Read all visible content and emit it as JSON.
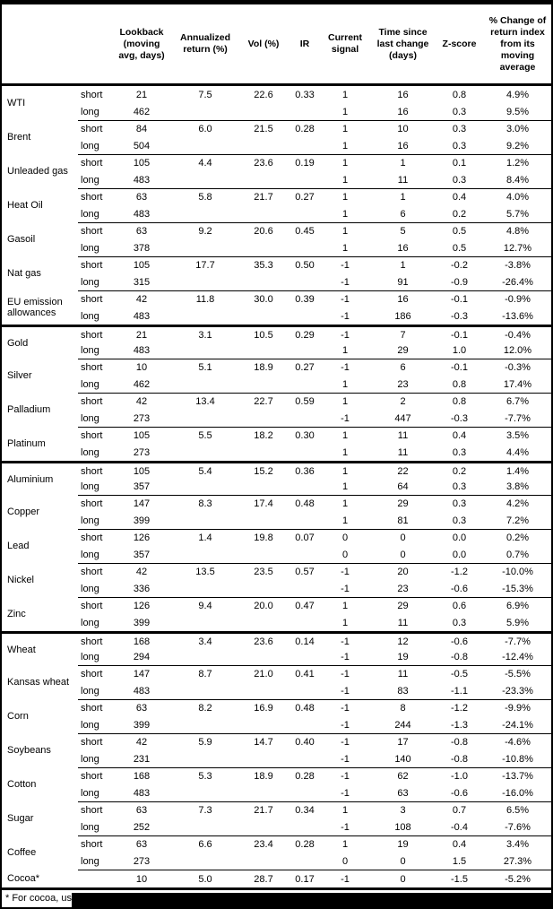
{
  "table": {
    "header": {
      "lookback": "Lookback\n(moving\navg, days)",
      "annualized": "Annualized\nreturn (%)",
      "vol": "Vol (%)",
      "ir": "IR",
      "signal": "Current\nsignal",
      "time": "Time since\nlast change\n(days)",
      "zscore": "Z-score",
      "pct_change": "% Change of\nreturn index\nfrom its\nmoving\naverage"
    },
    "rows": [
      {
        "name": "WTI",
        "section": false,
        "ann": "7.5",
        "vol": "22.6",
        "ir": "0.33",
        "short": {
          "label": "short",
          "lookback": "21",
          "sig": "1",
          "time": "16",
          "z": "0.8",
          "pct": "4.9%"
        },
        "long": {
          "label": "long",
          "lookback": "462",
          "sig": "1",
          "time": "16",
          "z": "0.3",
          "pct": "9.5%"
        }
      },
      {
        "name": "Brent",
        "section": false,
        "ann": "6.0",
        "vol": "21.5",
        "ir": "0.28",
        "short": {
          "label": "short",
          "lookback": "84",
          "sig": "1",
          "time": "10",
          "z": "0.3",
          "pct": "3.0%"
        },
        "long": {
          "label": "long",
          "lookback": "504",
          "sig": "1",
          "time": "16",
          "z": "0.3",
          "pct": "9.2%"
        }
      },
      {
        "name": "Unleaded gas",
        "section": false,
        "ann": "4.4",
        "vol": "23.6",
        "ir": "0.19",
        "short": {
          "label": "short",
          "lookback": "105",
          "sig": "1",
          "time": "1",
          "z": "0.1",
          "pct": "1.2%"
        },
        "long": {
          "label": "long",
          "lookback": "483",
          "sig": "1",
          "time": "11",
          "z": "0.3",
          "pct": "8.4%"
        }
      },
      {
        "name": "Heat Oil",
        "section": false,
        "ann": "5.8",
        "vol": "21.7",
        "ir": "0.27",
        "short": {
          "label": "short",
          "lookback": "63",
          "sig": "1",
          "time": "1",
          "z": "0.4",
          "pct": "4.0%"
        },
        "long": {
          "label": "long",
          "lookback": "483",
          "sig": "1",
          "time": "6",
          "z": "0.2",
          "pct": "5.7%"
        }
      },
      {
        "name": "Gasoil",
        "section": false,
        "ann": "9.2",
        "vol": "20.6",
        "ir": "0.45",
        "short": {
          "label": "short",
          "lookback": "63",
          "sig": "1",
          "time": "5",
          "z": "0.5",
          "pct": "4.8%"
        },
        "long": {
          "label": "long",
          "lookback": "378",
          "sig": "1",
          "time": "16",
          "z": "0.5",
          "pct": "12.7%"
        }
      },
      {
        "name": "Nat gas",
        "section": false,
        "ann": "17.7",
        "vol": "35.3",
        "ir": "0.50",
        "short": {
          "label": "short",
          "lookback": "105",
          "sig": "-1",
          "time": "1",
          "z": "-0.2",
          "pct": "-3.8%"
        },
        "long": {
          "label": "long",
          "lookback": "315",
          "sig": "-1",
          "time": "91",
          "z": "-0.9",
          "pct": "-26.4%"
        }
      },
      {
        "name": "EU emission allowances",
        "section": false,
        "ann": "11.8",
        "vol": "30.0",
        "ir": "0.39",
        "short": {
          "label": "short",
          "lookback": "42",
          "sig": "-1",
          "time": "16",
          "z": "-0.1",
          "pct": "-0.9%"
        },
        "long": {
          "label": "long",
          "lookback": "483",
          "sig": "-1",
          "time": "186",
          "z": "-0.3",
          "pct": "-13.6%"
        }
      },
      {
        "name": "Gold",
        "section": true,
        "ann": "3.1",
        "vol": "10.5",
        "ir": "0.29",
        "short": {
          "label": "short",
          "lookback": "21",
          "sig": "-1",
          "time": "7",
          "z": "-0.1",
          "pct": "-0.4%"
        },
        "long": {
          "label": "long",
          "lookback": "483",
          "sig": "1",
          "time": "29",
          "z": "1.0",
          "pct": "12.0%"
        }
      },
      {
        "name": "Silver",
        "section": false,
        "ann": "5.1",
        "vol": "18.9",
        "ir": "0.27",
        "short": {
          "label": "short",
          "lookback": "10",
          "sig": "-1",
          "time": "6",
          "z": "-0.1",
          "pct": "-0.3%"
        },
        "long": {
          "label": "long",
          "lookback": "462",
          "sig": "1",
          "time": "23",
          "z": "0.8",
          "pct": "17.4%"
        }
      },
      {
        "name": "Palladium",
        "section": false,
        "ann": "13.4",
        "vol": "22.7",
        "ir": "0.59",
        "short": {
          "label": "short",
          "lookback": "42",
          "sig": "1",
          "time": "2",
          "z": "0.8",
          "pct": "6.7%"
        },
        "long": {
          "label": "long",
          "lookback": "273",
          "sig": "-1",
          "time": "447",
          "z": "-0.3",
          "pct": "-7.7%"
        }
      },
      {
        "name": "Platinum",
        "section": false,
        "ann": "5.5",
        "vol": "18.2",
        "ir": "0.30",
        "short": {
          "label": "short",
          "lookback": "105",
          "sig": "1",
          "time": "11",
          "z": "0.4",
          "pct": "3.5%"
        },
        "long": {
          "label": "long",
          "lookback": "273",
          "sig": "1",
          "time": "11",
          "z": "0.3",
          "pct": "4.4%"
        }
      },
      {
        "name": "Aluminium",
        "section": true,
        "ann": "5.4",
        "vol": "15.2",
        "ir": "0.36",
        "short": {
          "label": "short",
          "lookback": "105",
          "sig": "1",
          "time": "22",
          "z": "0.2",
          "pct": "1.4%"
        },
        "long": {
          "label": "long",
          "lookback": "357",
          "sig": "1",
          "time": "64",
          "z": "0.3",
          "pct": "3.8%"
        }
      },
      {
        "name": "Copper",
        "section": false,
        "ann": "8.3",
        "vol": "17.4",
        "ir": "0.48",
        "short": {
          "label": "short",
          "lookback": "147",
          "sig": "1",
          "time": "29",
          "z": "0.3",
          "pct": "4.2%"
        },
        "long": {
          "label": "long",
          "lookback": "399",
          "sig": "1",
          "time": "81",
          "z": "0.3",
          "pct": "7.2%"
        }
      },
      {
        "name": "Lead",
        "section": false,
        "ann": "1.4",
        "vol": "19.8",
        "ir": "0.07",
        "short": {
          "label": "short",
          "lookback": "126",
          "sig": "0",
          "time": "0",
          "z": "0.0",
          "pct": "0.2%"
        },
        "long": {
          "label": "long",
          "lookback": "357",
          "sig": "0",
          "time": "0",
          "z": "0.0",
          "pct": "0.7%"
        }
      },
      {
        "name": "Nickel",
        "section": false,
        "ann": "13.5",
        "vol": "23.5",
        "ir": "0.57",
        "short": {
          "label": "short",
          "lookback": "42",
          "sig": "-1",
          "time": "20",
          "z": "-1.2",
          "pct": "-10.0%"
        },
        "long": {
          "label": "long",
          "lookback": "336",
          "sig": "-1",
          "time": "23",
          "z": "-0.6",
          "pct": "-15.3%"
        }
      },
      {
        "name": "Zinc",
        "section": false,
        "ann": "9.4",
        "vol": "20.0",
        "ir": "0.47",
        "short": {
          "label": "short",
          "lookback": "126",
          "sig": "1",
          "time": "29",
          "z": "0.6",
          "pct": "6.9%"
        },
        "long": {
          "label": "long",
          "lookback": "399",
          "sig": "1",
          "time": "11",
          "z": "0.3",
          "pct": "5.9%"
        }
      },
      {
        "name": "Wheat",
        "section": true,
        "ann": "3.4",
        "vol": "23.6",
        "ir": "0.14",
        "short": {
          "label": "short",
          "lookback": "168",
          "sig": "-1",
          "time": "12",
          "z": "-0.6",
          "pct": "-7.7%"
        },
        "long": {
          "label": "long",
          "lookback": "294",
          "sig": "-1",
          "time": "19",
          "z": "-0.8",
          "pct": "-12.4%"
        }
      },
      {
        "name": "Kansas wheat",
        "section": false,
        "ann": "8.7",
        "vol": "21.0",
        "ir": "0.41",
        "short": {
          "label": "short",
          "lookback": "147",
          "sig": "-1",
          "time": "11",
          "z": "-0.5",
          "pct": "-5.5%"
        },
        "long": {
          "label": "long",
          "lookback": "483",
          "sig": "-1",
          "time": "83",
          "z": "-1.1",
          "pct": "-23.3%"
        }
      },
      {
        "name": "Corn",
        "section": false,
        "ann": "8.2",
        "vol": "16.9",
        "ir": "0.48",
        "short": {
          "label": "short",
          "lookback": "63",
          "sig": "-1",
          "time": "8",
          "z": "-1.2",
          "pct": "-9.9%"
        },
        "long": {
          "label": "long",
          "lookback": "399",
          "sig": "-1",
          "time": "244",
          "z": "-1.3",
          "pct": "-24.1%"
        }
      },
      {
        "name": "Soybeans",
        "section": false,
        "ann": "5.9",
        "vol": "14.7",
        "ir": "0.40",
        "short": {
          "label": "short",
          "lookback": "42",
          "sig": "-1",
          "time": "17",
          "z": "-0.8",
          "pct": "-4.6%"
        },
        "long": {
          "label": "long",
          "lookback": "231",
          "sig": "-1",
          "time": "140",
          "z": "-0.8",
          "pct": "-10.8%"
        }
      },
      {
        "name": "Cotton",
        "section": false,
        "ann": "5.3",
        "vol": "18.9",
        "ir": "0.28",
        "short": {
          "label": "short",
          "lookback": "168",
          "sig": "-1",
          "time": "62",
          "z": "-1.0",
          "pct": "-13.7%"
        },
        "long": {
          "label": "long",
          "lookback": "483",
          "sig": "-1",
          "time": "63",
          "z": "-0.6",
          "pct": "-16.0%"
        }
      },
      {
        "name": "Sugar",
        "section": false,
        "ann": "7.3",
        "vol": "21.7",
        "ir": "0.34",
        "short": {
          "label": "short",
          "lookback": "63",
          "sig": "1",
          "time": "3",
          "z": "0.7",
          "pct": "6.5%"
        },
        "long": {
          "label": "long",
          "lookback": "252",
          "sig": "-1",
          "time": "108",
          "z": "-0.4",
          "pct": "-7.6%"
        }
      },
      {
        "name": "Coffee",
        "section": false,
        "ann": "6.6",
        "vol": "23.4",
        "ir": "0.28",
        "short": {
          "label": "short",
          "lookback": "63",
          "sig": "1",
          "time": "19",
          "z": "0.4",
          "pct": "3.4%"
        },
        "long": {
          "label": "long",
          "lookback": "273",
          "sig": "0",
          "time": "0",
          "z": "1.5",
          "pct": "27.3%"
        }
      },
      {
        "name": "Cocoa*",
        "section": false,
        "single": true,
        "ann": "5.0",
        "vol": "28.7",
        "ir": "0.17",
        "short": {
          "label": "",
          "lookback": "10",
          "sig": "-1",
          "time": "0",
          "z": "-1.5",
          "pct": "-5.2%"
        }
      }
    ],
    "footnote": "* For cocoa, uses o"
  }
}
